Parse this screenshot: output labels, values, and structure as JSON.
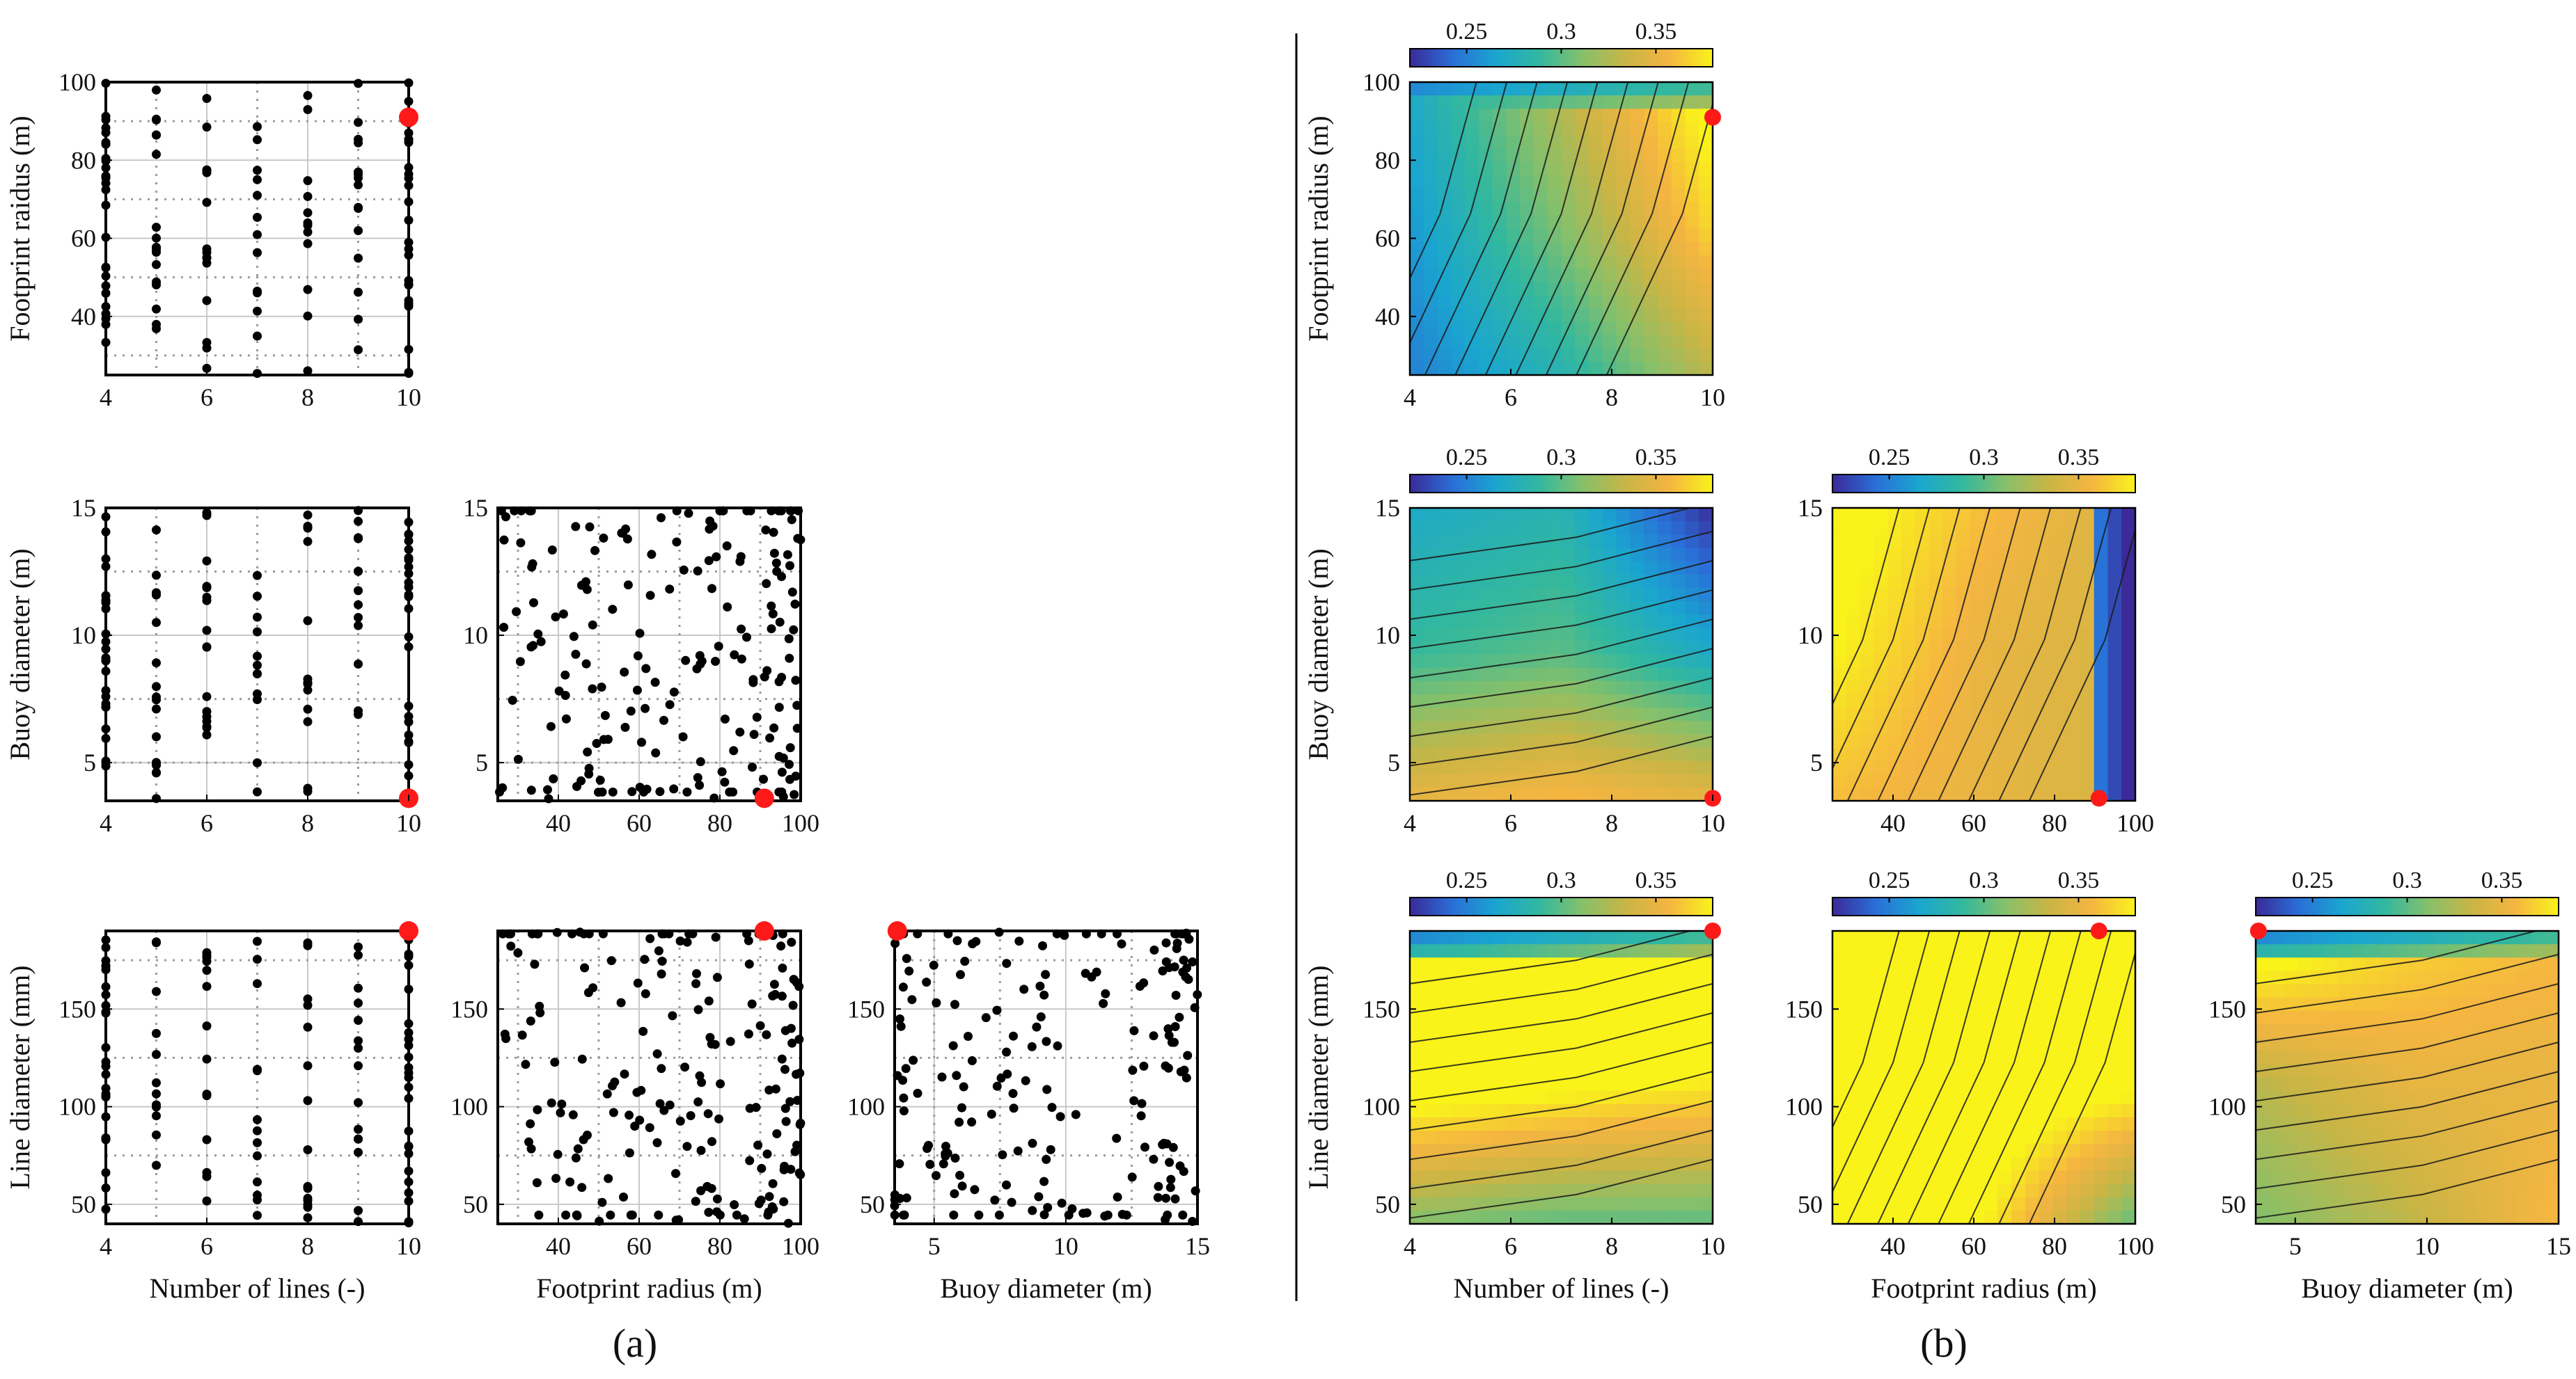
{
  "figure": {
    "panel_a_label": "(a)",
    "panel_b_label": "(b)",
    "colors": {
      "frame": "#000000",
      "point": "#000000",
      "optimum": "#ff1a1a",
      "grid_solid": "#c8c8c8",
      "grid_dotted": "#9a9a9a",
      "contour": "#1a1a1a"
    }
  },
  "labels": {
    "xlabels": [
      "Number of lines (-)",
      "Footprint radius (m)",
      "Buoy diameter (m)"
    ],
    "ylabels": [
      "Footprint raidus (m)",
      "Buoy diameter (m)",
      "Line diameter (mm)"
    ]
  },
  "colorbar": {
    "ticks": [
      "0.25",
      "0.3",
      "0.35"
    ],
    "range": [
      0.22,
      0.38
    ],
    "stops": [
      "#3b2a98",
      "#2a6fd8",
      "#1aa6cf",
      "#33b89e",
      "#86c06a",
      "#c9b545",
      "#f5b541",
      "#f9f31a"
    ]
  },
  "chart_data": [
    {
      "id": "a-r0c0",
      "panel": "a",
      "type": "scatter",
      "row": 0,
      "col": 0,
      "xlabel": "",
      "ylabel": "Footprint raidus (m)",
      "xlim": [
        4,
        10
      ],
      "ylim": [
        25,
        100
      ],
      "xticks": [
        4,
        6,
        8,
        10
      ],
      "yticks": [
        40,
        60,
        80,
        100
      ],
      "dotted_x": [
        5,
        7,
        9
      ],
      "dotted_y": [
        30,
        50,
        70,
        90
      ],
      "optimum": [
        10,
        91
      ]
    },
    {
      "id": "a-r1c0",
      "panel": "a",
      "type": "scatter",
      "row": 1,
      "col": 0,
      "xlabel": "",
      "ylabel": "Buoy diameter (m)",
      "xlim": [
        4,
        10
      ],
      "ylim": [
        3.5,
        15
      ],
      "xticks": [
        4,
        6,
        8,
        10
      ],
      "yticks": [
        5,
        10,
        15
      ],
      "dotted_x": [
        5,
        7,
        9
      ],
      "dotted_y": [
        5,
        7.5,
        12.5
      ],
      "optimum": [
        10,
        3.6
      ]
    },
    {
      "id": "a-r1c1",
      "panel": "a",
      "type": "scatter",
      "row": 1,
      "col": 1,
      "xlabel": "",
      "ylabel": "",
      "xlim": [
        25,
        100
      ],
      "ylim": [
        3.5,
        15
      ],
      "xticks": [
        40,
        60,
        80,
        100
      ],
      "yticks": [
        5,
        10,
        15
      ],
      "dotted_x": [
        30,
        50,
        70,
        90
      ],
      "dotted_y": [
        5,
        7.5,
        12.5
      ],
      "optimum": [
        91,
        3.6
      ]
    },
    {
      "id": "a-r2c0",
      "panel": "a",
      "type": "scatter",
      "row": 2,
      "col": 0,
      "xlabel": "Number of lines (-)",
      "ylabel": "Line diameter (mm)",
      "xlim": [
        4,
        10
      ],
      "ylim": [
        40,
        190
      ],
      "xticks": [
        4,
        6,
        8,
        10
      ],
      "yticks": [
        50,
        100,
        150
      ],
      "dotted_x": [
        5,
        7,
        9
      ],
      "dotted_y": [
        75,
        125,
        175
      ],
      "optimum": [
        10,
        190
      ]
    },
    {
      "id": "a-r2c1",
      "panel": "a",
      "type": "scatter",
      "row": 2,
      "col": 1,
      "xlabel": "Footprint radius (m)",
      "ylabel": "",
      "xlim": [
        25,
        100
      ],
      "ylim": [
        40,
        190
      ],
      "xticks": [
        40,
        60,
        80,
        100
      ],
      "yticks": [
        50,
        100,
        150
      ],
      "dotted_x": [
        30,
        50,
        70,
        90
      ],
      "dotted_y": [
        75,
        125,
        175
      ],
      "optimum": [
        91,
        190
      ]
    },
    {
      "id": "a-r2c2",
      "panel": "a",
      "type": "scatter",
      "row": 2,
      "col": 2,
      "xlabel": "Buoy diameter (m)",
      "ylabel": "",
      "xlim": [
        3.5,
        15
      ],
      "ylim": [
        40,
        190
      ],
      "xticks": [
        5,
        10,
        15
      ],
      "yticks": [
        50,
        100,
        150
      ],
      "dotted_x": [
        5,
        7.5,
        12.5
      ],
      "dotted_y": [
        75,
        125,
        175
      ],
      "optimum": [
        3.6,
        190
      ]
    },
    {
      "id": "b-r0c0",
      "panel": "b",
      "type": "heatmap",
      "row": 0,
      "col": 0,
      "xlabel": "",
      "ylabel": "Footprint radius (m)",
      "xlim": [
        4,
        10
      ],
      "ylim": [
        25,
        100
      ],
      "xticks": [
        4,
        6,
        8,
        10
      ],
      "yticks": [
        40,
        60,
        80,
        100
      ],
      "optimum": [
        10,
        91
      ],
      "z_corners": [
        [
          0.27,
          0.33,
          0.39
        ],
        [
          0.26,
          0.31,
          0.37
        ],
        [
          0.25,
          0.28,
          0.33
        ]
      ],
      "low_band": "top"
    },
    {
      "id": "b-r1c0",
      "panel": "b",
      "type": "heatmap",
      "row": 1,
      "col": 0,
      "xlabel": "",
      "ylabel": "Buoy diameter (m)",
      "xlim": [
        4,
        10
      ],
      "ylim": [
        3.5,
        15
      ],
      "xticks": [
        4,
        6,
        8,
        10
      ],
      "yticks": [
        5,
        10,
        15
      ],
      "optimum": [
        10,
        3.6
      ],
      "z_corners": [
        [
          0.27,
          0.28,
          0.22
        ],
        [
          0.29,
          0.3,
          0.27
        ],
        [
          0.35,
          0.36,
          0.35
        ]
      ],
      "low_band": "none"
    },
    {
      "id": "b-r1c1",
      "panel": "b",
      "type": "heatmap",
      "row": 1,
      "col": 1,
      "xlabel": "",
      "ylabel": "",
      "xlim": [
        25,
        100
      ],
      "ylim": [
        3.5,
        15
      ],
      "xticks": [
        40,
        60,
        80,
        100
      ],
      "yticks": [
        5,
        10,
        15
      ],
      "optimum": [
        91,
        3.6
      ],
      "z_corners": [
        [
          0.39,
          0.36,
          0.34
        ],
        [
          0.38,
          0.35,
          0.34
        ],
        [
          0.36,
          0.35,
          0.34
        ]
      ],
      "low_band": "right"
    },
    {
      "id": "b-r2c0",
      "panel": "b",
      "type": "heatmap",
      "row": 2,
      "col": 0,
      "xlabel": "Number of lines (-)",
      "ylabel": "Line diameter (mm)",
      "xlim": [
        4,
        10
      ],
      "ylim": [
        40,
        190
      ],
      "xticks": [
        4,
        6,
        8,
        10
      ],
      "yticks": [
        50,
        100,
        150
      ],
      "optimum": [
        10,
        190
      ],
      "z_corners": [
        [
          0.4,
          0.4,
          0.39
        ],
        [
          0.4,
          0.39,
          0.38
        ],
        [
          0.31,
          0.3,
          0.3
        ]
      ],
      "low_band": "top"
    },
    {
      "id": "b-r2c1",
      "panel": "b",
      "type": "heatmap",
      "row": 2,
      "col": 1,
      "xlabel": "Footprint radius (m)",
      "ylabel": "",
      "xlim": [
        25,
        100
      ],
      "ylim": [
        40,
        190
      ],
      "xticks": [
        40,
        60,
        80,
        100
      ],
      "yticks": [
        50,
        100,
        150
      ],
      "optimum": [
        91,
        190
      ],
      "z_corners": [
        [
          0.4,
          0.4,
          0.4
        ],
        [
          0.4,
          0.4,
          0.39
        ],
        [
          0.4,
          0.38,
          0.3
        ]
      ],
      "low_band": "none"
    },
    {
      "id": "b-r2c2",
      "panel": "b",
      "type": "heatmap",
      "row": 2,
      "col": 2,
      "xlabel": "Buoy diameter (m)",
      "ylabel": "",
      "xlim": [
        3.5,
        15
      ],
      "ylim": [
        40,
        190
      ],
      "xticks": [
        5,
        10,
        15
      ],
      "yticks": [
        50,
        100,
        150
      ],
      "optimum": [
        3.6,
        190
      ],
      "z_corners": [
        [
          0.4,
          0.37,
          0.36
        ],
        [
          0.33,
          0.35,
          0.35
        ],
        [
          0.31,
          0.33,
          0.36
        ]
      ],
      "low_band": "top"
    }
  ]
}
